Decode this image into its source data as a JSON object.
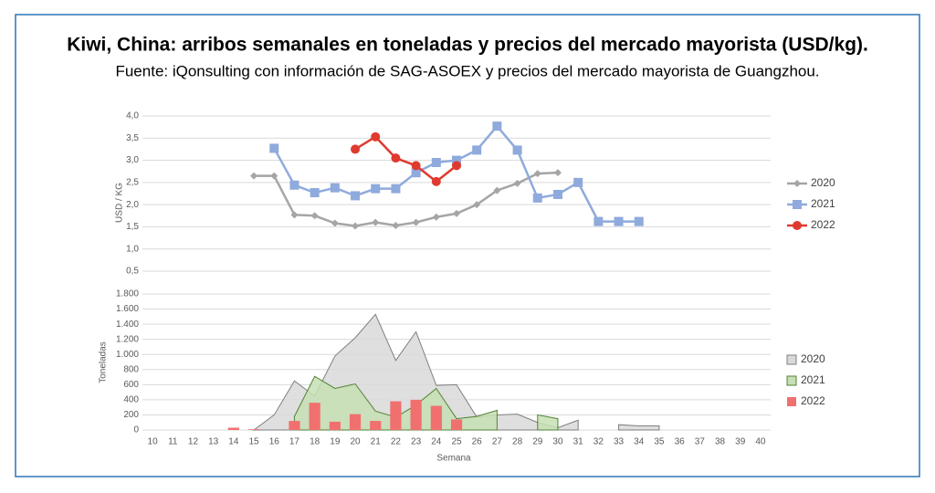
{
  "chart_data": [
    {
      "type": "line",
      "title": "Kiwi, China: arribos semanales en toneladas y precios del mercado mayorista (USD/kg).",
      "subtitle": "Fuente: iQonsulting con información de SAG-ASOEX y precios del mercado mayorista de Guangzhou.",
      "ylabel": "USD / KG",
      "xlim": [
        9.5,
        40.5
      ],
      "ylim": [
        0.5,
        4.0
      ],
      "yticks": [
        {
          "value": 0.5,
          "label": "0,5"
        },
        {
          "value": 1.0,
          "label": "1,0"
        },
        {
          "value": 1.5,
          "label": "1,5"
        },
        {
          "value": 2.0,
          "label": "2,0"
        },
        {
          "value": 2.5,
          "label": "2,5"
        },
        {
          "value": 3.0,
          "label": "3,0"
        },
        {
          "value": 3.5,
          "label": "3,5"
        },
        {
          "value": 4.0,
          "label": "4,0"
        }
      ],
      "grid": true,
      "legend": "right",
      "series": [
        {
          "name": "2020",
          "color": "#a5a5a5",
          "marker": "diamond",
          "x": [
            15,
            16,
            17,
            18,
            19,
            20,
            21,
            22,
            23,
            24,
            25,
            26,
            27,
            28,
            29,
            30
          ],
          "values": [
            2.65,
            2.65,
            1.77,
            1.75,
            1.58,
            1.52,
            1.6,
            1.53,
            1.6,
            1.72,
            1.8,
            2.0,
            2.32,
            2.48,
            2.7,
            2.72
          ]
        },
        {
          "name": "2021",
          "color": "#8faadc",
          "marker": "square",
          "x": [
            16,
            17,
            18,
            19,
            20,
            21,
            22,
            23,
            24,
            25,
            26,
            27,
            28,
            29,
            30,
            31,
            32,
            33,
            34
          ],
          "values": [
            3.27,
            2.44,
            2.27,
            2.38,
            2.2,
            2.36,
            2.36,
            2.72,
            2.95,
            3.0,
            3.23,
            3.77,
            3.23,
            2.15,
            2.23,
            2.5,
            1.62,
            1.62,
            1.62
          ]
        },
        {
          "name": "2022",
          "color": "#e03a2f",
          "marker": "circle",
          "x": [
            20,
            21,
            22,
            23,
            24,
            25
          ],
          "values": [
            3.25,
            3.53,
            3.05,
            2.88,
            2.52,
            2.88
          ]
        }
      ]
    },
    {
      "type": "area",
      "ylabel": "Toneladas",
      "xlabel": "Semana",
      "xlim": [
        9.5,
        40.5
      ],
      "xticks": [
        10,
        11,
        12,
        13,
        14,
        15,
        16,
        17,
        18,
        19,
        20,
        21,
        22,
        23,
        24,
        25,
        26,
        27,
        28,
        29,
        30,
        31,
        32,
        33,
        34,
        35,
        36,
        37,
        38,
        39,
        40
      ],
      "ylim": [
        0,
        1800
      ],
      "yticks": [
        0,
        200,
        400,
        600,
        800,
        {
          "value": 1000,
          "label": "1.000"
        },
        {
          "value": 1200,
          "label": "1.200"
        },
        {
          "value": 1400,
          "label": "1.400"
        },
        {
          "value": 1600,
          "label": "1.600"
        },
        {
          "value": 1800,
          "label": "1.800"
        }
      ],
      "grid": true,
      "legend": "right",
      "series": [
        {
          "name": "2020",
          "kind": "area",
          "color": "#d9d9d9",
          "edge": "#7f7f7f",
          "x": [
            15,
            16,
            17,
            18,
            19,
            20,
            21,
            22,
            23,
            24,
            25,
            26,
            27,
            28,
            29,
            30,
            31,
            32,
            33,
            34,
            35
          ],
          "values": [
            0,
            200,
            650,
            450,
            980,
            1220,
            1530,
            920,
            1300,
            590,
            600,
            170,
            200,
            210,
            100,
            30,
            130,
            null,
            70,
            55,
            55
          ]
        },
        {
          "name": "2021",
          "kind": "area",
          "color": "#c5e0b4",
          "edge": "#548235",
          "x": [
            17,
            18,
            19,
            20,
            21,
            22,
            23,
            24,
            25,
            26,
            27,
            28,
            29,
            30
          ],
          "values": [
            180,
            710,
            550,
            610,
            250,
            170,
            330,
            550,
            150,
            180,
            260,
            null,
            200,
            150
          ]
        },
        {
          "name": "2022",
          "kind": "bar",
          "color": "#f07070",
          "x": [
            14,
            15,
            17,
            18,
            19,
            20,
            21,
            22,
            23,
            24,
            25
          ],
          "values": [
            30,
            10,
            120,
            360,
            110,
            210,
            120,
            380,
            400,
            320,
            140
          ]
        }
      ]
    }
  ]
}
